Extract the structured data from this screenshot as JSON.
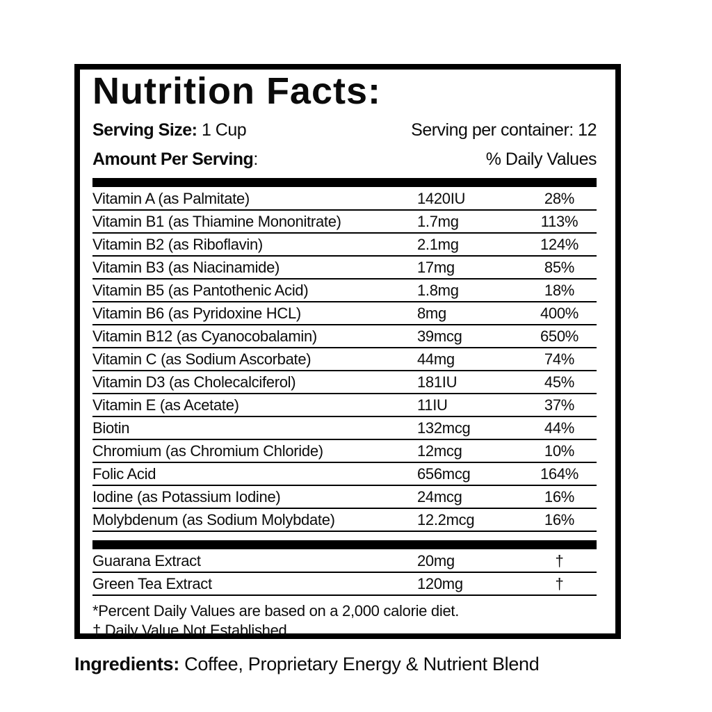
{
  "colors": {
    "ink": "#000000",
    "background": "#ffffff"
  },
  "label": {
    "title": "Nutrition Facts:",
    "serving_size_label": "Serving Size:",
    "serving_size_value": "1 Cup",
    "servings_per_container": "Serving per container: 12",
    "amount_per_serving_label": "Amount Per Serving",
    "amount_per_serving_colon": ":",
    "daily_values_header": "% Daily Values",
    "rows": [
      {
        "name": "Vitamin A (as Palmitate)",
        "amount": "1420IU",
        "dv": "28%"
      },
      {
        "name": "Vitamin B1 (as Thiamine Mononitrate)",
        "amount": "1.7mg",
        "dv": "113%"
      },
      {
        "name": "Vitamin B2 (as Riboflavin)",
        "amount": "2.1mg",
        "dv": "124%"
      },
      {
        "name": "Vitamin B3 (as Niacinamide)",
        "amount": "17mg",
        "dv": "85%"
      },
      {
        "name": "Vitamin B5 (as Pantothenic Acid)",
        "amount": "1.8mg",
        "dv": "18%"
      },
      {
        "name": "Vitamin B6 (as Pyridoxine HCL)",
        "amount": "8mg",
        "dv": "400%"
      },
      {
        "name": "Vitamin B12 (as Cyanocobalamin)",
        "amount": "39mcg",
        "dv": "650%"
      },
      {
        "name": "Vitamin C (as Sodium Ascorbate)",
        "amount": "44mg",
        "dv": "74%"
      },
      {
        "name": "Vitamin D3 (as Cholecalciferol)",
        "amount": "181IU",
        "dv": "45%"
      },
      {
        "name": "Vitamin E (as Acetate)",
        "amount": "11IU",
        "dv": "37%"
      },
      {
        "name": "Biotin",
        "amount": "132mcg",
        "dv": "44%"
      },
      {
        "name": "Chromium (as Chromium Chloride)",
        "amount": "12mcg",
        "dv": "10%"
      },
      {
        "name": "Folic Acid",
        "amount": "656mcg",
        "dv": "164%"
      },
      {
        "name": "Iodine (as Potassium Iodine)",
        "amount": "24mcg",
        "dv": "16%"
      },
      {
        "name": "Molybdenum (as Sodium Molybdate)",
        "amount": "12.2mcg",
        "dv": "16%"
      }
    ],
    "supplement_rows": [
      {
        "name": "Guarana Extract",
        "amount": "20mg",
        "dv": "†"
      },
      {
        "name": "Green Tea Extract",
        "amount": "120mg",
        "dv": "†"
      }
    ],
    "footnotes": [
      "*Percent Daily Values are based on a 2,000 calorie diet.",
      "† Daily Value Not Established"
    ]
  },
  "ingredients": {
    "label": "Ingredients:",
    "value": " Coffee, Proprietary Energy & Nutrient Blend"
  }
}
